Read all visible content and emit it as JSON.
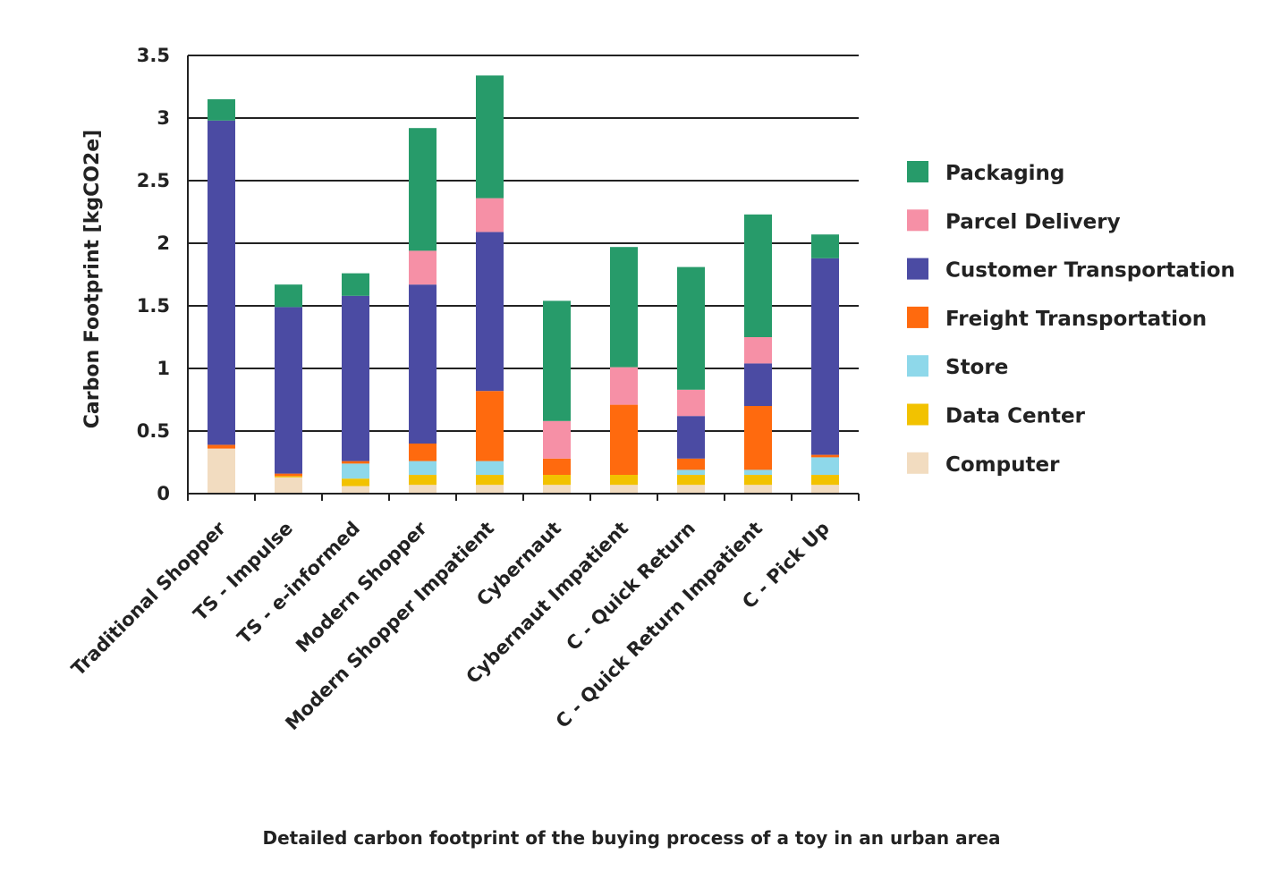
{
  "caption": "Detailed carbon footprint of the buying process of a toy in an urban area",
  "chart_data": {
    "type": "bar",
    "stacked": true,
    "title": "",
    "xlabel": "",
    "ylabel": "Carbon Footprint [kgCO2e]",
    "ylim": [
      0,
      3.5
    ],
    "yticks": [
      0,
      0.5,
      1,
      1.5,
      2,
      2.5,
      3,
      3.5
    ],
    "ytick_labels": [
      "0",
      "0.5",
      "1",
      "1.5",
      "2",
      "2.5",
      "3",
      "3.5"
    ],
    "grid": true,
    "legend_position": "right",
    "categories": [
      "Traditional Shopper",
      "TS - Impulse",
      "TS - e-informed",
      "Modern Shopper",
      "Modern Shopper Impatient",
      "Cybernaut",
      "Cybernaut Impatient",
      "C - Quick Return",
      "C - Quick Return Impatient",
      "C - Pick Up"
    ],
    "series": [
      {
        "name": "Computer",
        "color": "#F2DCC0",
        "values": [
          0.36,
          0.13,
          0.06,
          0.07,
          0.07,
          0.07,
          0.07,
          0.07,
          0.07,
          0.07
        ]
      },
      {
        "name": "Data Center",
        "color": "#F2C200",
        "values": [
          0.0,
          0.01,
          0.06,
          0.08,
          0.08,
          0.08,
          0.08,
          0.08,
          0.08,
          0.08
        ]
      },
      {
        "name": "Store",
        "color": "#8ED8EA",
        "values": [
          0.0,
          0.0,
          0.12,
          0.11,
          0.11,
          0.0,
          0.0,
          0.04,
          0.04,
          0.14
        ]
      },
      {
        "name": "Freight Transportation",
        "color": "#FF6A0E",
        "values": [
          0.03,
          0.02,
          0.02,
          0.14,
          0.56,
          0.13,
          0.56,
          0.09,
          0.51,
          0.02
        ]
      },
      {
        "name": "Customer Transportation",
        "color": "#4B4BA3",
        "values": [
          2.59,
          1.33,
          1.32,
          1.27,
          1.27,
          0.0,
          0.0,
          0.34,
          0.34,
          1.57
        ]
      },
      {
        "name": "Parcel Delivery",
        "color": "#F690A6",
        "values": [
          0.0,
          0.0,
          0.0,
          0.27,
          0.27,
          0.3,
          0.3,
          0.21,
          0.21,
          0.0
        ]
      },
      {
        "name": "Packaging",
        "color": "#279B6A",
        "values": [
          0.17,
          0.18,
          0.18,
          0.98,
          0.98,
          0.96,
          0.96,
          0.98,
          0.98,
          0.19
        ]
      }
    ],
    "legend": [
      "Packaging",
      "Parcel Delivery",
      "Customer Transportation",
      "Freight Transportation",
      "Store",
      "Data Center",
      "Computer"
    ]
  }
}
